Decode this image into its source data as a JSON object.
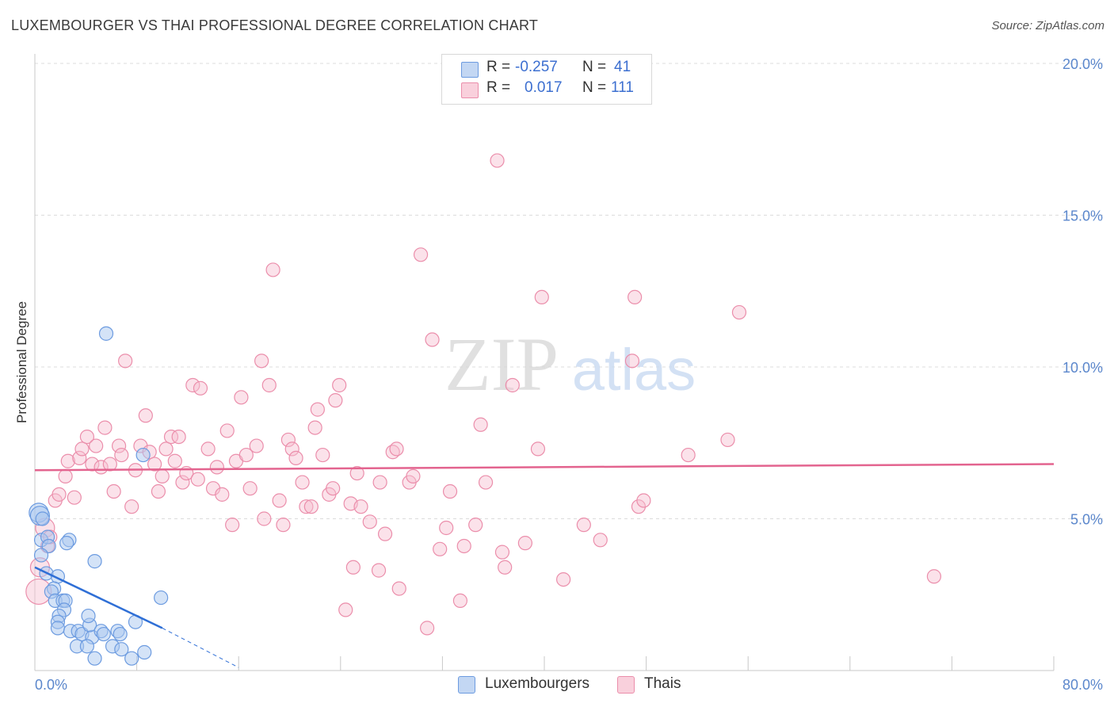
{
  "header": {
    "title": "LUXEMBOURGER VS THAI PROFESSIONAL DEGREE CORRELATION CHART",
    "source": "Source: ZipAtlas.com"
  },
  "watermark": {
    "zip": "ZIP",
    "atlas": "atlas"
  },
  "legend": {
    "rows": [
      {
        "r_label": "R =",
        "r_value": "-0.257",
        "n_label": "N =",
        "n_value": "41"
      },
      {
        "r_label": "R =",
        "r_value": "0.017",
        "n_label": "N =",
        "n_value": "111"
      }
    ]
  },
  "bottom_legend": {
    "items": [
      "Luxembourgers",
      "Thais"
    ]
  },
  "colors": {
    "lux_fill": "#a9c8f0",
    "lux_stroke": "#6c9be0",
    "lux_line": "#2f6fd6",
    "thai_fill": "#f7bfd0",
    "thai_stroke": "#eb8eab",
    "thai_line": "#e3648f",
    "grid": "#dcdcdc",
    "axis_text": "#5b87cc"
  },
  "chart_data": {
    "type": "scatter",
    "title": "LUXEMBOURGER VS THAI PROFESSIONAL DEGREE CORRELATION CHART",
    "xlabel": "",
    "ylabel": "Professional Degree",
    "xlim": [
      0,
      80
    ],
    "ylim": [
      0,
      20
    ],
    "x_tick_labels": [
      "0.0%",
      "80.0%"
    ],
    "y_ticks": [
      5,
      10,
      15,
      20
    ],
    "y_tick_labels": [
      "5.0%",
      "10.0%",
      "15.0%",
      "20.0%"
    ],
    "grid": true,
    "legend_position": "top-center",
    "series": [
      {
        "name": "Luxembourgers",
        "r": -0.257,
        "n": 41,
        "trend": {
          "x": [
            0,
            10
          ],
          "y": [
            3.4,
            1.4
          ]
        },
        "trend_extension": {
          "x": [
            10,
            16
          ],
          "y": [
            1.4,
            0.1
          ]
        },
        "points": [
          {
            "x": 0.3,
            "y": 5.2,
            "s": 2
          },
          {
            "x": 0.4,
            "y": 5.1,
            "s": 2
          },
          {
            "x": 0.6,
            "y": 5.0,
            "s": 1
          },
          {
            "x": 0.5,
            "y": 4.3,
            "s": 1
          },
          {
            "x": 1.0,
            "y": 4.4,
            "s": 1
          },
          {
            "x": 1.1,
            "y": 4.1,
            "s": 1
          },
          {
            "x": 0.5,
            "y": 3.8,
            "s": 1
          },
          {
            "x": 0.9,
            "y": 3.2,
            "s": 1
          },
          {
            "x": 1.8,
            "y": 3.1,
            "s": 1
          },
          {
            "x": 1.5,
            "y": 2.7,
            "s": 1
          },
          {
            "x": 1.3,
            "y": 2.6,
            "s": 1
          },
          {
            "x": 1.6,
            "y": 2.3,
            "s": 1
          },
          {
            "x": 2.2,
            "y": 2.3,
            "s": 1
          },
          {
            "x": 2.4,
            "y": 2.3,
            "s": 1
          },
          {
            "x": 2.3,
            "y": 2.0,
            "s": 1
          },
          {
            "x": 2.7,
            "y": 4.3,
            "s": 1
          },
          {
            "x": 2.5,
            "y": 4.2,
            "s": 1
          },
          {
            "x": 4.7,
            "y": 3.6,
            "s": 1
          },
          {
            "x": 5.6,
            "y": 11.1,
            "s": 1
          },
          {
            "x": 8.5,
            "y": 7.1,
            "s": 1
          },
          {
            "x": 9.9,
            "y": 2.4,
            "s": 1
          },
          {
            "x": 1.9,
            "y": 1.8,
            "s": 1
          },
          {
            "x": 1.8,
            "y": 1.6,
            "s": 1
          },
          {
            "x": 1.8,
            "y": 1.4,
            "s": 1
          },
          {
            "x": 2.8,
            "y": 1.3,
            "s": 1
          },
          {
            "x": 3.4,
            "y": 1.3,
            "s": 1
          },
          {
            "x": 3.7,
            "y": 1.2,
            "s": 1
          },
          {
            "x": 4.5,
            "y": 1.1,
            "s": 1
          },
          {
            "x": 4.3,
            "y": 1.5,
            "s": 1
          },
          {
            "x": 4.2,
            "y": 1.8,
            "s": 1
          },
          {
            "x": 5.2,
            "y": 1.3,
            "s": 1
          },
          {
            "x": 5.4,
            "y": 1.2,
            "s": 1
          },
          {
            "x": 6.5,
            "y": 1.3,
            "s": 1
          },
          {
            "x": 6.7,
            "y": 1.2,
            "s": 1
          },
          {
            "x": 7.9,
            "y": 1.6,
            "s": 1
          },
          {
            "x": 3.3,
            "y": 0.8,
            "s": 1
          },
          {
            "x": 4.1,
            "y": 0.8,
            "s": 1
          },
          {
            "x": 6.1,
            "y": 0.8,
            "s": 1
          },
          {
            "x": 6.8,
            "y": 0.7,
            "s": 1
          },
          {
            "x": 8.6,
            "y": 0.6,
            "s": 1
          },
          {
            "x": 4.7,
            "y": 0.4,
            "s": 1
          },
          {
            "x": 7.6,
            "y": 0.4,
            "s": 1
          }
        ]
      },
      {
        "name": "Thais",
        "r": 0.017,
        "n": 111,
        "trend": {
          "x": [
            0,
            80
          ],
          "y": [
            6.6,
            6.8
          ]
        },
        "points": [
          {
            "x": 0.3,
            "y": 2.6,
            "s": 3
          },
          {
            "x": 0.4,
            "y": 3.4,
            "s": 2
          },
          {
            "x": 0.8,
            "y": 4.7,
            "s": 2
          },
          {
            "x": 1.0,
            "y": 4.1,
            "s": 1
          },
          {
            "x": 1.2,
            "y": 4.4,
            "s": 1
          },
          {
            "x": 1.6,
            "y": 5.6,
            "s": 1
          },
          {
            "x": 1.9,
            "y": 5.8,
            "s": 1
          },
          {
            "x": 2.4,
            "y": 6.4,
            "s": 1
          },
          {
            "x": 2.6,
            "y": 6.9,
            "s": 1
          },
          {
            "x": 3.1,
            "y": 5.7,
            "s": 1
          },
          {
            "x": 3.5,
            "y": 7.0,
            "s": 1
          },
          {
            "x": 3.7,
            "y": 7.3,
            "s": 1
          },
          {
            "x": 4.1,
            "y": 7.7,
            "s": 1
          },
          {
            "x": 4.5,
            "y": 6.8,
            "s": 1
          },
          {
            "x": 4.8,
            "y": 7.4,
            "s": 1
          },
          {
            "x": 5.2,
            "y": 6.7,
            "s": 1
          },
          {
            "x": 5.5,
            "y": 8.0,
            "s": 1
          },
          {
            "x": 5.9,
            "y": 6.8,
            "s": 1
          },
          {
            "x": 6.2,
            "y": 5.9,
            "s": 1
          },
          {
            "x": 6.6,
            "y": 7.4,
            "s": 1
          },
          {
            "x": 6.8,
            "y": 7.1,
            "s": 1
          },
          {
            "x": 7.1,
            "y": 10.2,
            "s": 1
          },
          {
            "x": 7.6,
            "y": 5.4,
            "s": 1
          },
          {
            "x": 7.9,
            "y": 6.6,
            "s": 1
          },
          {
            "x": 8.3,
            "y": 7.4,
            "s": 1
          },
          {
            "x": 8.7,
            "y": 8.4,
            "s": 1
          },
          {
            "x": 9.0,
            "y": 7.2,
            "s": 1
          },
          {
            "x": 9.4,
            "y": 6.8,
            "s": 1
          },
          {
            "x": 9.7,
            "y": 5.9,
            "s": 1
          },
          {
            "x": 10.0,
            "y": 6.4,
            "s": 1
          },
          {
            "x": 10.3,
            "y": 7.3,
            "s": 1
          },
          {
            "x": 10.7,
            "y": 7.7,
            "s": 1
          },
          {
            "x": 11.0,
            "y": 6.9,
            "s": 1
          },
          {
            "x": 11.3,
            "y": 7.7,
            "s": 1
          },
          {
            "x": 11.6,
            "y": 6.2,
            "s": 1
          },
          {
            "x": 11.9,
            "y": 6.5,
            "s": 1
          },
          {
            "x": 12.4,
            "y": 9.4,
            "s": 1
          },
          {
            "x": 13.0,
            "y": 9.3,
            "s": 1
          },
          {
            "x": 12.8,
            "y": 6.3,
            "s": 1
          },
          {
            "x": 13.6,
            "y": 7.3,
            "s": 1
          },
          {
            "x": 14.0,
            "y": 6.0,
            "s": 1
          },
          {
            "x": 14.3,
            "y": 6.7,
            "s": 1
          },
          {
            "x": 14.7,
            "y": 5.8,
            "s": 1
          },
          {
            "x": 15.1,
            "y": 7.9,
            "s": 1
          },
          {
            "x": 15.5,
            "y": 4.8,
            "s": 1
          },
          {
            "x": 15.8,
            "y": 6.9,
            "s": 1
          },
          {
            "x": 16.2,
            "y": 9.0,
            "s": 1
          },
          {
            "x": 16.6,
            "y": 7.1,
            "s": 1
          },
          {
            "x": 16.9,
            "y": 6.0,
            "s": 1
          },
          {
            "x": 17.4,
            "y": 7.4,
            "s": 1
          },
          {
            "x": 17.8,
            "y": 10.2,
            "s": 1
          },
          {
            "x": 18.0,
            "y": 5.0,
            "s": 1
          },
          {
            "x": 18.4,
            "y": 9.4,
            "s": 1
          },
          {
            "x": 18.7,
            "y": 13.2,
            "s": 1
          },
          {
            "x": 19.2,
            "y": 5.6,
            "s": 1
          },
          {
            "x": 19.5,
            "y": 4.8,
            "s": 1
          },
          {
            "x": 19.9,
            "y": 7.6,
            "s": 1
          },
          {
            "x": 20.2,
            "y": 7.3,
            "s": 1
          },
          {
            "x": 20.5,
            "y": 7.0,
            "s": 1
          },
          {
            "x": 21.0,
            "y": 6.2,
            "s": 1
          },
          {
            "x": 21.3,
            "y": 5.4,
            "s": 1
          },
          {
            "x": 21.7,
            "y": 5.4,
            "s": 1
          },
          {
            "x": 22.0,
            "y": 8.0,
            "s": 1
          },
          {
            "x": 22.2,
            "y": 8.6,
            "s": 1
          },
          {
            "x": 22.6,
            "y": 7.1,
            "s": 1
          },
          {
            "x": 23.1,
            "y": 5.8,
            "s": 1
          },
          {
            "x": 23.4,
            "y": 6.0,
            "s": 1
          },
          {
            "x": 23.6,
            "y": 8.9,
            "s": 1
          },
          {
            "x": 23.9,
            "y": 9.4,
            "s": 1
          },
          {
            "x": 24.4,
            "y": 2.0,
            "s": 1
          },
          {
            "x": 24.8,
            "y": 5.5,
            "s": 1
          },
          {
            "x": 25.0,
            "y": 3.4,
            "s": 1
          },
          {
            "x": 25.3,
            "y": 6.5,
            "s": 1
          },
          {
            "x": 25.6,
            "y": 5.4,
            "s": 1
          },
          {
            "x": 26.3,
            "y": 4.9,
            "s": 1
          },
          {
            "x": 27.0,
            "y": 3.3,
            "s": 1
          },
          {
            "x": 27.1,
            "y": 6.2,
            "s": 1
          },
          {
            "x": 27.5,
            "y": 4.5,
            "s": 1
          },
          {
            "x": 28.1,
            "y": 7.2,
            "s": 1
          },
          {
            "x": 28.4,
            "y": 7.3,
            "s": 1
          },
          {
            "x": 28.6,
            "y": 2.7,
            "s": 1
          },
          {
            "x": 29.4,
            "y": 6.2,
            "s": 1
          },
          {
            "x": 29.7,
            "y": 6.4,
            "s": 1
          },
          {
            "x": 30.3,
            "y": 13.7,
            "s": 1
          },
          {
            "x": 30.8,
            "y": 1.4,
            "s": 1
          },
          {
            "x": 31.2,
            "y": 10.9,
            "s": 1
          },
          {
            "x": 31.8,
            "y": 4.0,
            "s": 1
          },
          {
            "x": 32.3,
            "y": 4.7,
            "s": 1
          },
          {
            "x": 32.6,
            "y": 5.9,
            "s": 1
          },
          {
            "x": 33.4,
            "y": 2.3,
            "s": 1
          },
          {
            "x": 33.7,
            "y": 4.1,
            "s": 1
          },
          {
            "x": 34.6,
            "y": 4.8,
            "s": 1
          },
          {
            "x": 35.0,
            "y": 8.1,
            "s": 1
          },
          {
            "x": 36.3,
            "y": 16.8,
            "s": 1
          },
          {
            "x": 35.4,
            "y": 6.2,
            "s": 1
          },
          {
            "x": 36.7,
            "y": 3.9,
            "s": 1
          },
          {
            "x": 36.9,
            "y": 3.4,
            "s": 1
          },
          {
            "x": 37.5,
            "y": 9.4,
            "s": 1
          },
          {
            "x": 38.5,
            "y": 4.2,
            "s": 1
          },
          {
            "x": 39.5,
            "y": 7.3,
            "s": 1
          },
          {
            "x": 39.8,
            "y": 12.3,
            "s": 1
          },
          {
            "x": 41.5,
            "y": 3.0,
            "s": 1
          },
          {
            "x": 43.1,
            "y": 4.8,
            "s": 1
          },
          {
            "x": 44.4,
            "y": 4.3,
            "s": 1
          },
          {
            "x": 46.9,
            "y": 10.2,
            "s": 1
          },
          {
            "x": 47.1,
            "y": 12.3,
            "s": 1
          },
          {
            "x": 47.4,
            "y": 5.4,
            "s": 1
          },
          {
            "x": 47.8,
            "y": 5.6,
            "s": 1
          },
          {
            "x": 51.3,
            "y": 7.1,
            "s": 1
          },
          {
            "x": 54.4,
            "y": 7.6,
            "s": 1
          },
          {
            "x": 55.3,
            "y": 11.8,
            "s": 1
          },
          {
            "x": 70.6,
            "y": 3.1,
            "s": 1
          }
        ]
      }
    ]
  }
}
